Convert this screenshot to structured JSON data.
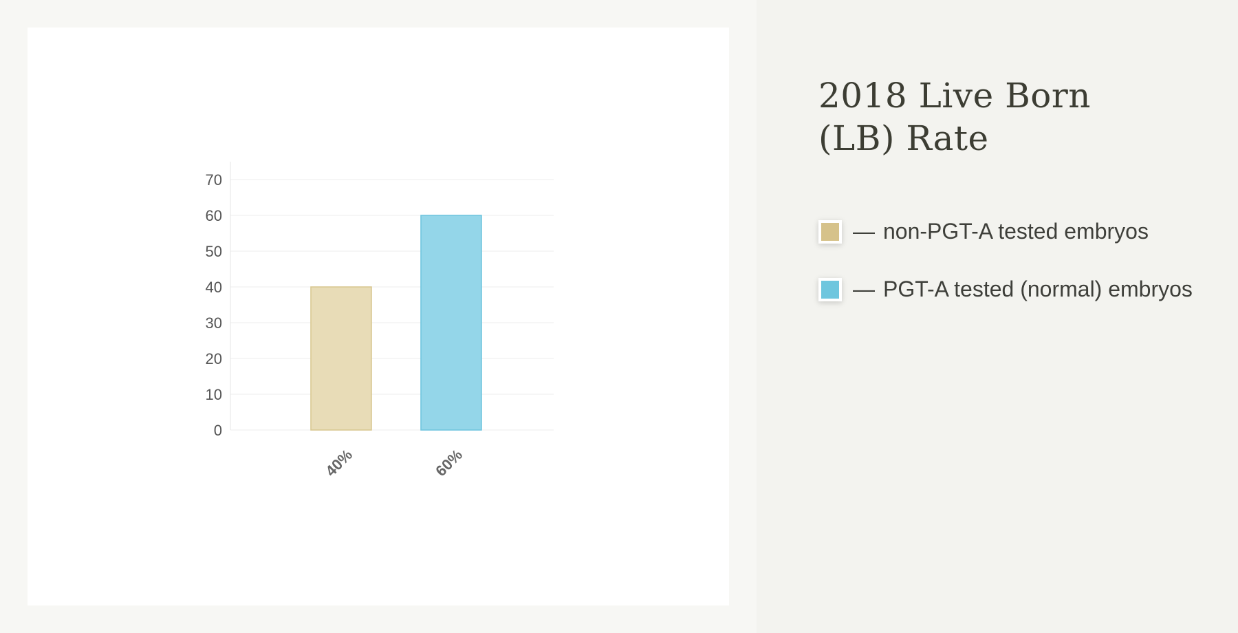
{
  "chart_data": {
    "type": "bar",
    "title": "2018 Live Born (LB) Rate",
    "categories": [
      "40%",
      "60%"
    ],
    "values": [
      40,
      60
    ],
    "ylim": [
      0,
      70
    ],
    "yticks": [
      0,
      10,
      20,
      30,
      40,
      50,
      60,
      70
    ],
    "grid": true,
    "legend_position": "right",
    "colors": [
      "#e8dcb7",
      "#94d6e9"
    ],
    "stroke_colors": [
      "#d7c68d",
      "#6cc4dd"
    ],
    "legend": [
      {
        "label": "non-PGT-A tested embryos",
        "color": "#d6c28a",
        "dash": "—"
      },
      {
        "label": "PGT-A tested (normal) embryos",
        "color": "#6ec6de",
        "dash": "—"
      }
    ]
  }
}
